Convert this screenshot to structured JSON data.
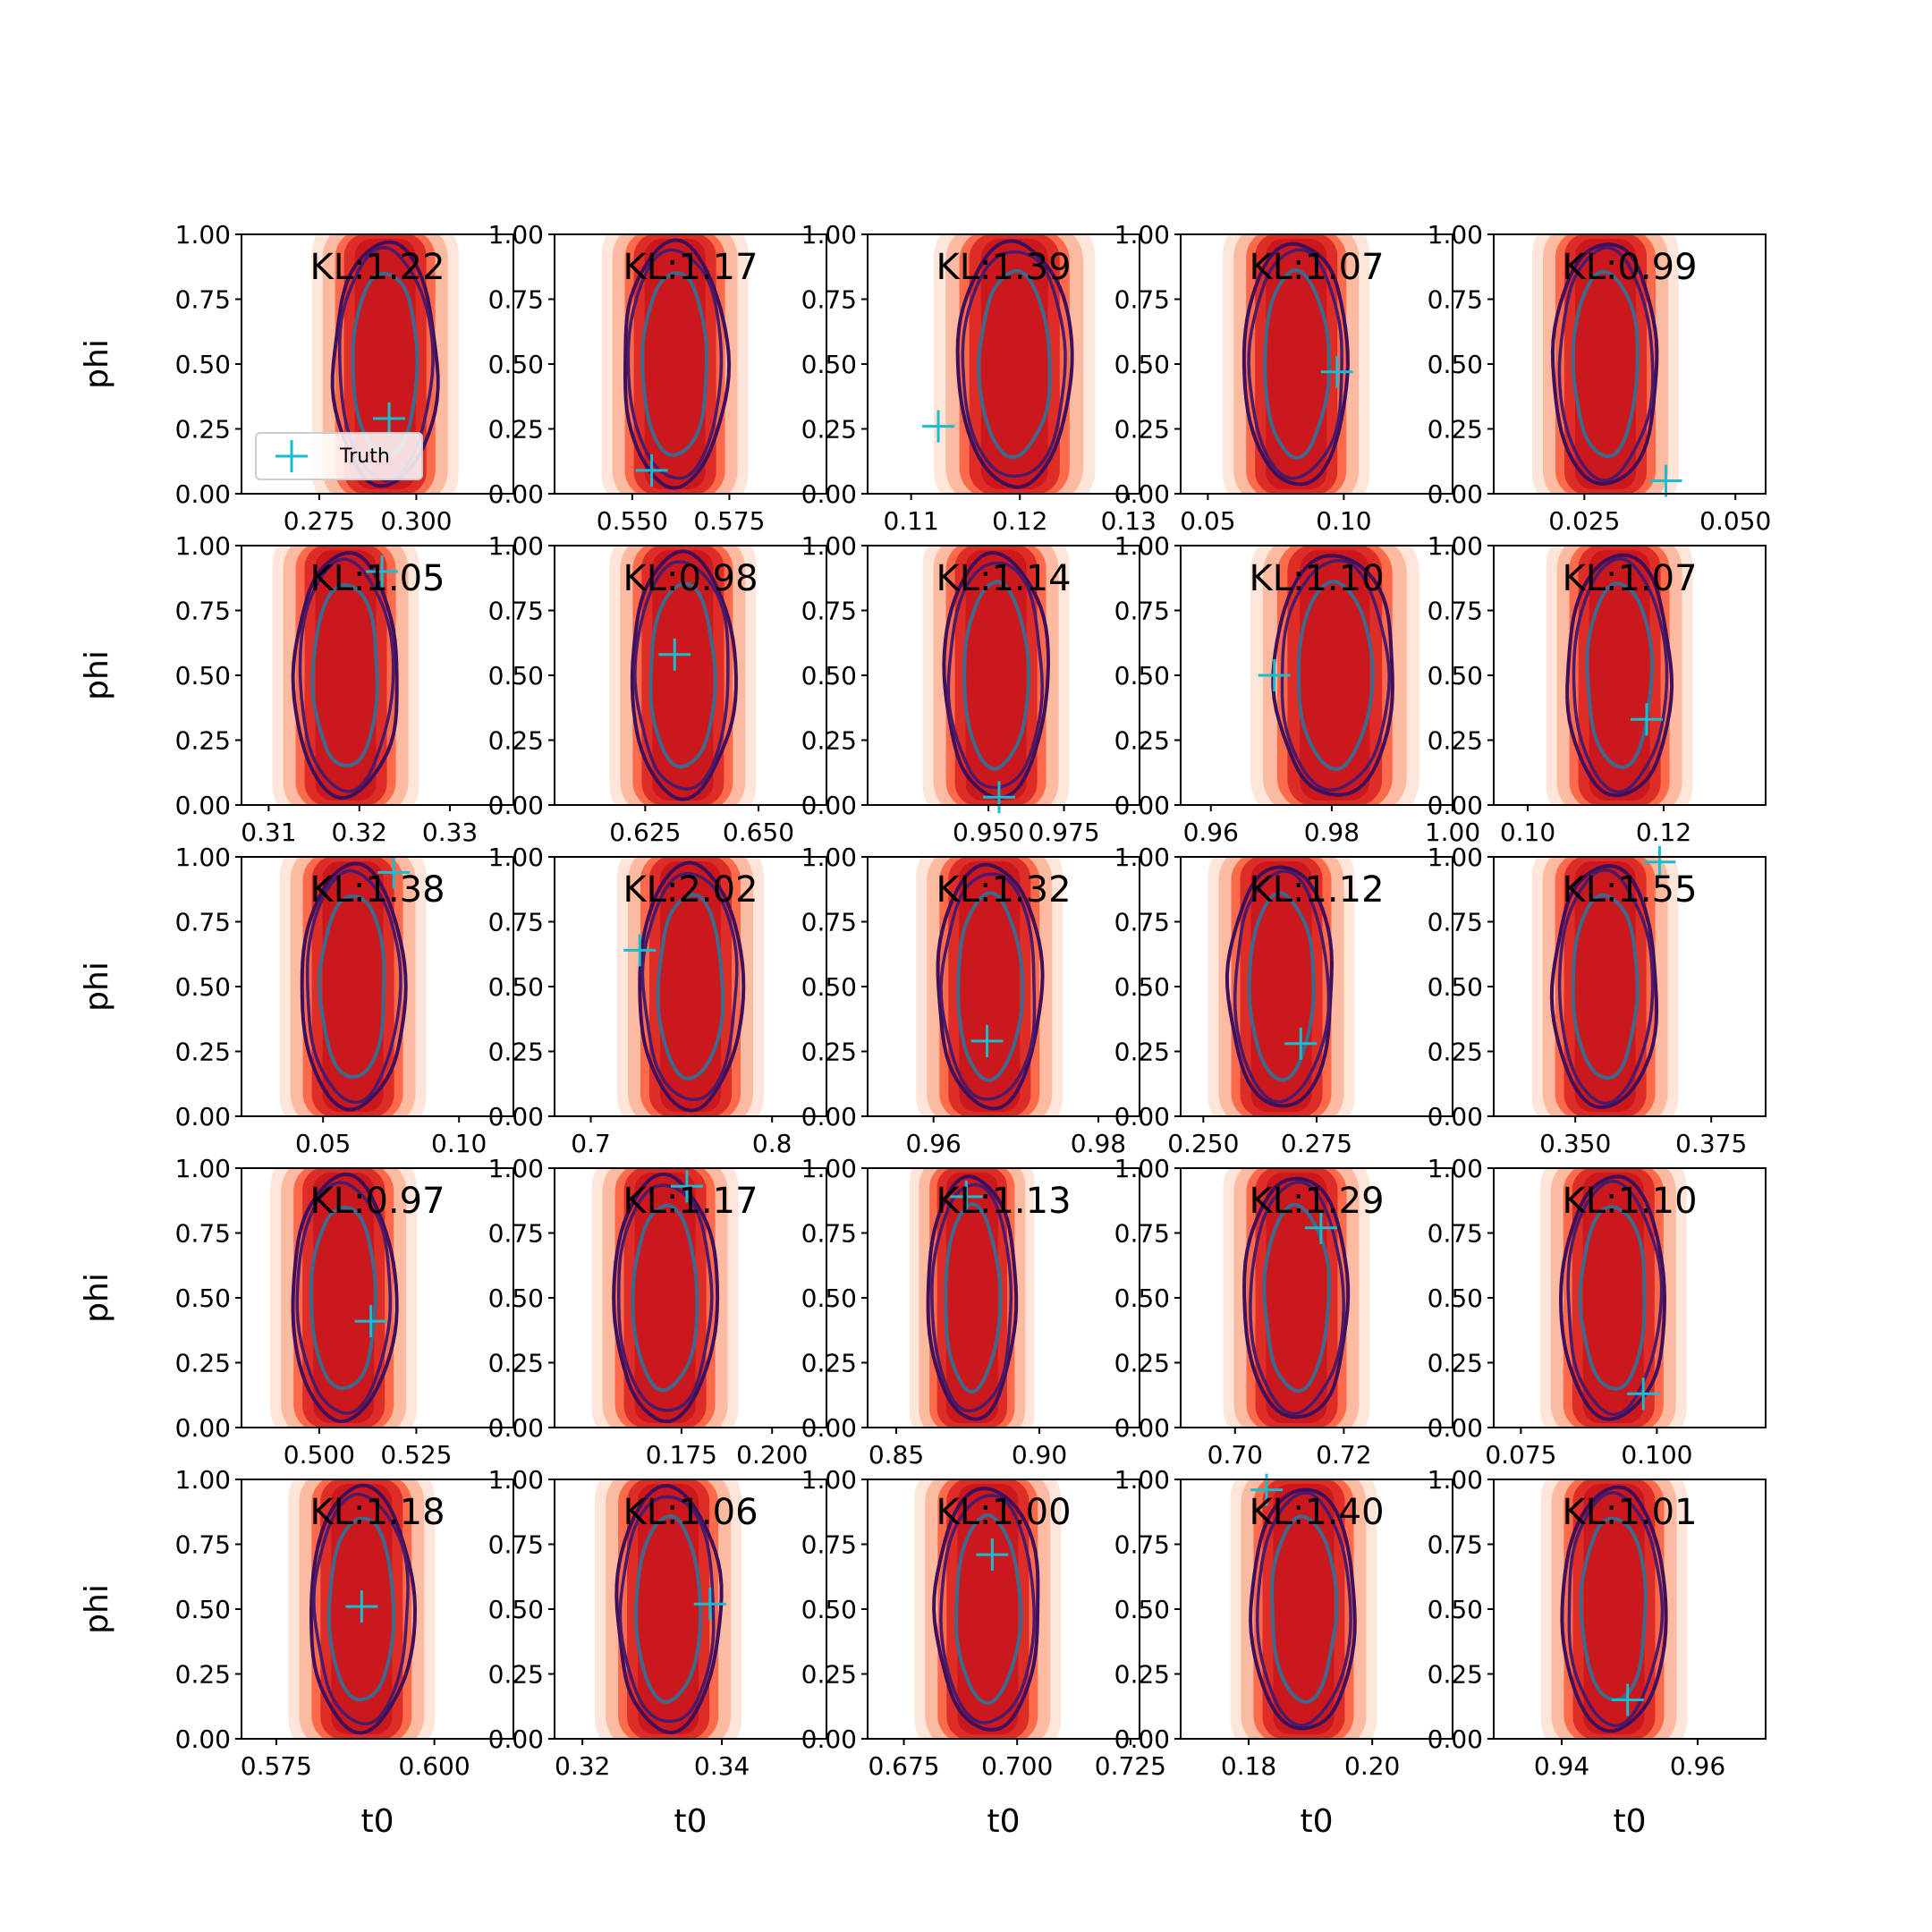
{
  "chart_data": {
    "type": "contour",
    "layout": {
      "rows": 5,
      "cols": 5
    },
    "xlabel": "t0",
    "ylabel": "phi",
    "ylim": [
      0,
      1
    ],
    "y_ticks": [
      "0.00",
      "0.25",
      "0.50",
      "0.75",
      "1.00"
    ],
    "legend": {
      "label": "Truth",
      "marker": "+",
      "color": "#17becf",
      "location": "lower-left",
      "panel": 0
    },
    "colors": {
      "fill_levels": [
        "#fee5d9",
        "#fcbba1",
        "#fb6a4a",
        "#de2d26",
        "#cb181d"
      ],
      "outer_contour": "#3f0f5c",
      "mid_contour": "#4a1a6b",
      "inner_contour": "#3b6a8f",
      "truth_marker": "#17becf"
    },
    "panels": [
      {
        "kl": "KL:1.22",
        "xlim": [
          0.255,
          0.325
        ],
        "xticks": [
          0.275,
          0.3
        ],
        "xtick_labels": [
          "0.275",
          "0.300"
        ],
        "center_x": 0.292,
        "truth": [
          0.293,
          0.29
        ],
        "width_scale": 1.0
      },
      {
        "kl": "KL:1.17",
        "xlim": [
          0.53,
          0.6
        ],
        "xticks": [
          0.55,
          0.575
        ],
        "xtick_labels": [
          "0.550",
          "0.575"
        ],
        "center_x": 0.561,
        "truth": [
          0.555,
          0.09
        ],
        "width_scale": 1.0
      },
      {
        "kl": "KL:1.39",
        "xlim": [
          0.106,
          0.131
        ],
        "xticks": [
          0.11,
          0.12,
          0.13
        ],
        "xtick_labels": [
          "0.11",
          "0.12",
          "0.13"
        ],
        "center_x": 0.1195,
        "truth": [
          0.1125,
          0.26
        ],
        "width_scale": 1.1
      },
      {
        "kl": "KL:1.07",
        "xlim": [
          0.04,
          0.14
        ],
        "xticks": [
          0.05,
          0.1
        ],
        "xtick_labels": [
          "0.05",
          "0.10"
        ],
        "center_x": 0.0825,
        "truth": [
          0.0975,
          0.47
        ],
        "width_scale": 1.0
      },
      {
        "kl": "KL:0.99",
        "xlim": [
          0.01,
          0.055
        ],
        "xticks": [
          0.025,
          0.05
        ],
        "xtick_labels": [
          "0.025",
          "0.050"
        ],
        "center_x": 0.0285,
        "truth": [
          0.0385,
          0.05
        ],
        "width_scale": 1.0
      },
      {
        "kl": "KL:1.05",
        "xlim": [
          0.307,
          0.337
        ],
        "xticks": [
          0.31,
          0.32,
          0.33
        ],
        "xtick_labels": [
          "0.31",
          "0.32",
          "0.33"
        ],
        "center_x": 0.3185,
        "truth": [
          0.3225,
          0.9
        ],
        "width_scale": 1.0
      },
      {
        "kl": "KL:0.98",
        "xlim": [
          0.605,
          0.665
        ],
        "xticks": [
          0.625,
          0.65
        ],
        "xtick_labels": [
          "0.625",
          "0.650"
        ],
        "center_x": 0.6333,
        "truth": [
          0.6315,
          0.58
        ],
        "width_scale": 1.0
      },
      {
        "kl": "KL:1.14",
        "xlim": [
          0.91,
          1.0
        ],
        "xticks": [
          0.95,
          0.975
        ],
        "xtick_labels": [
          "0.950",
          "0.975"
        ],
        "center_x": 0.9525,
        "truth": [
          0.9535,
          0.03
        ],
        "width_scale": 1.0
      },
      {
        "kl": "KL:1.10",
        "xlim": [
          0.955,
          1.0
        ],
        "xticks": [
          0.96,
          0.98,
          1.0
        ],
        "xtick_labels": [
          "0.96",
          "0.98",
          "1.00"
        ],
        "center_x": 0.9805,
        "truth": [
          0.9705,
          0.5
        ],
        "width_scale": 1.15
      },
      {
        "kl": "KL:1.07",
        "xlim": [
          0.095,
          0.135
        ],
        "xticks": [
          0.1,
          0.12
        ],
        "xtick_labels": [
          "0.10",
          "0.12"
        ],
        "center_x": 0.1135,
        "truth": [
          0.1175,
          0.33
        ],
        "width_scale": 1.0
      },
      {
        "kl": "KL:1.38",
        "xlim": [
          0.02,
          0.12
        ],
        "xticks": [
          0.05,
          0.1
        ],
        "xtick_labels": [
          "0.05",
          "0.10"
        ],
        "center_x": 0.061,
        "truth": [
          0.076,
          0.94
        ],
        "width_scale": 1.0
      },
      {
        "kl": "KL:2.02",
        "xlim": [
          0.68,
          0.83
        ],
        "xticks": [
          0.7,
          0.8
        ],
        "xtick_labels": [
          "0.7",
          "0.8"
        ],
        "center_x": 0.755,
        "truth": [
          0.727,
          0.64
        ],
        "width_scale": 1.0
      },
      {
        "kl": "KL:1.32",
        "xlim": [
          0.952,
          0.985
        ],
        "xticks": [
          0.96,
          0.98
        ],
        "xtick_labels": [
          "0.96",
          "0.98"
        ],
        "center_x": 0.9668,
        "truth": [
          0.9665,
          0.29
        ],
        "width_scale": 1.0
      },
      {
        "kl": "KL:1.12",
        "xlim": [
          0.245,
          0.305
        ],
        "xticks": [
          0.25,
          0.275
        ],
        "xtick_labels": [
          "0.250",
          "0.275"
        ],
        "center_x": 0.2672,
        "truth": [
          0.2715,
          0.28
        ],
        "width_scale": 1.0
      },
      {
        "kl": "KL:1.55",
        "xlim": [
          0.335,
          0.385
        ],
        "xticks": [
          0.35,
          0.375
        ],
        "xtick_labels": [
          "0.350",
          "0.375"
        ],
        "center_x": 0.3555,
        "truth": [
          0.3655,
          0.98
        ],
        "width_scale": 1.0
      },
      {
        "kl": "KL:0.97",
        "xlim": [
          0.48,
          0.55
        ],
        "xticks": [
          0.5,
          0.525
        ],
        "xtick_labels": [
          "0.500",
          "0.525"
        ],
        "center_x": 0.5063,
        "truth": [
          0.5133,
          0.41
        ],
        "width_scale": 1.0
      },
      {
        "kl": "KL:1.17",
        "xlim": [
          0.14,
          0.215
        ],
        "xticks": [
          0.175,
          0.2
        ],
        "xtick_labels": [
          "0.175",
          "0.200"
        ],
        "center_x": 0.1705,
        "truth": [
          0.1765,
          0.93
        ],
        "width_scale": 1.0
      },
      {
        "kl": "KL:1.13",
        "xlim": [
          0.84,
          0.935
        ],
        "xticks": [
          0.85,
          0.9
        ],
        "xtick_labels": [
          "0.85",
          "0.90"
        ],
        "center_x": 0.8765,
        "truth": [
          0.8745,
          0.89
        ],
        "width_scale": 0.85
      },
      {
        "kl": "KL:1.29",
        "xlim": [
          0.69,
          0.74
        ],
        "xticks": [
          0.7,
          0.72
        ],
        "xtick_labels": [
          "0.70",
          "0.72"
        ],
        "center_x": 0.7113,
        "truth": [
          0.7158,
          0.77
        ],
        "width_scale": 1.0
      },
      {
        "kl": "KL:1.10",
        "xlim": [
          0.07,
          0.12
        ],
        "xticks": [
          0.075,
          0.1
        ],
        "xtick_labels": [
          "0.075",
          "0.100"
        ],
        "center_x": 0.092,
        "truth": [
          0.0975,
          0.13
        ],
        "width_scale": 1.0
      },
      {
        "kl": "KL:1.18",
        "xlim": [
          0.5695,
          0.6125
        ],
        "xticks": [
          0.575,
          0.6
        ],
        "xtick_labels": [
          "0.575",
          "0.600"
        ],
        "center_x": 0.5885,
        "truth": [
          0.5885,
          0.51
        ],
        "width_scale": 1.0
      },
      {
        "kl": "KL:1.06",
        "xlim": [
          0.316,
          0.355
        ],
        "xticks": [
          0.32,
          0.34
        ],
        "xtick_labels": [
          "0.32",
          "0.34"
        ],
        "center_x": 0.3323,
        "truth": [
          0.3383,
          0.52
        ],
        "width_scale": 1.0
      },
      {
        "kl": "KL:1.00",
        "xlim": [
          0.667,
          0.727
        ],
        "xticks": [
          0.675,
          0.7,
          0.725
        ],
        "xtick_labels": [
          "0.675",
          "0.700",
          "0.725"
        ],
        "center_x": 0.6935,
        "truth": [
          0.6945,
          0.71
        ],
        "width_scale": 1.0
      },
      {
        "kl": "KL:1.40",
        "xlim": [
          0.169,
          0.213
        ],
        "xticks": [
          0.18,
          0.2
        ],
        "xtick_labels": [
          "0.18",
          "0.20"
        ],
        "center_x": 0.1889,
        "truth": [
          0.1829,
          0.96
        ],
        "width_scale": 1.0
      },
      {
        "kl": "KL:1.01",
        "xlim": [
          0.93,
          0.97
        ],
        "xticks": [
          0.94,
          0.96
        ],
        "xtick_labels": [
          "0.94",
          "0.96"
        ],
        "center_x": 0.9477,
        "truth": [
          0.9497,
          0.15
        ],
        "width_scale": 1.0
      }
    ]
  }
}
